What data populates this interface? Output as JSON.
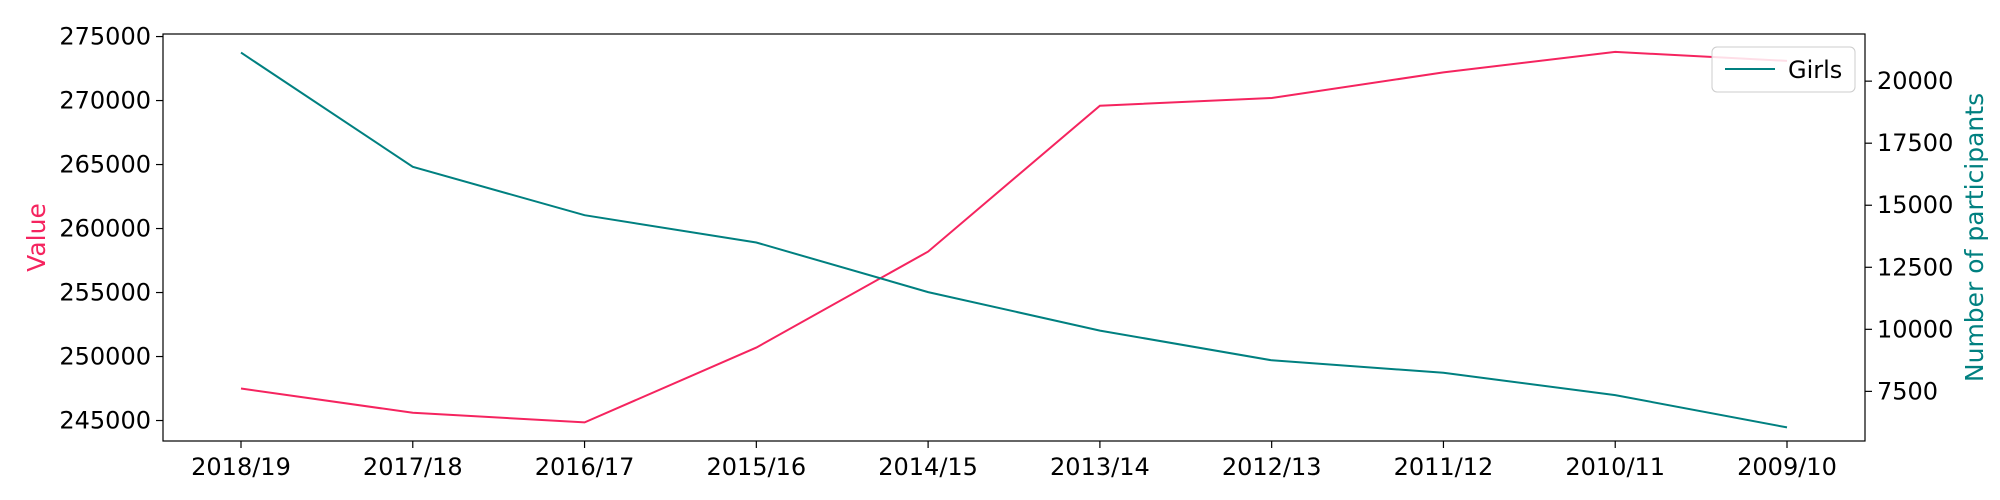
{
  "chart_data": {
    "type": "line",
    "categories": [
      "2018/19",
      "2017/18",
      "2016/17",
      "2015/16",
      "2014/15",
      "2013/14",
      "2012/13",
      "2011/12",
      "2010/11",
      "2009/10"
    ],
    "series": [
      {
        "axis": "left",
        "color": "#f5245f",
        "values": [
          247500,
          245600,
          244850,
          250700,
          258200,
          269600,
          270200,
          272200,
          273800,
          273100
        ]
      },
      {
        "name": "Girls",
        "axis": "right",
        "color": "#008080",
        "values": [
          21150,
          16550,
          14600,
          13500,
          11500,
          9950,
          8750,
          8250,
          7350,
          6050
        ]
      }
    ],
    "ylabel": "Value",
    "ylabel_color": "#f5245f",
    "y2label": "Number of participants",
    "y2label_color": "#008080",
    "ylim": [
      243400,
      275200
    ],
    "y2lim": [
      5500,
      21900
    ],
    "yticks": [
      "245000",
      "250000",
      "255000",
      "260000",
      "265000",
      "270000",
      "275000"
    ],
    "y2ticks": [
      "7500",
      "10000",
      "12500",
      "15000",
      "17500",
      "20000"
    ],
    "legend": {
      "placement": "top-right",
      "entries": [
        "Girls"
      ]
    },
    "grid": false
  }
}
